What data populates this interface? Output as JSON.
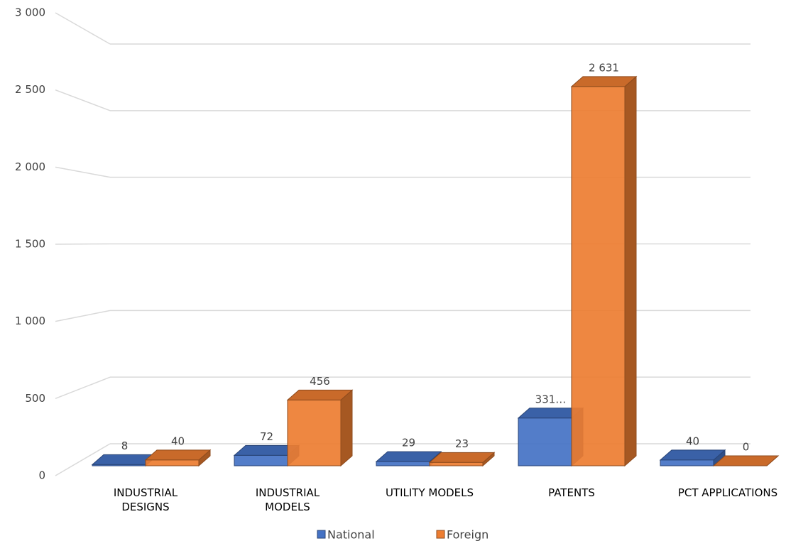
{
  "chart_data": {
    "type": "bar3d",
    "categories": [
      "INDUSTRIAL DESIGNS",
      "INDUSTRIAL MODELS",
      "UTILITY MODELS",
      "PATENTS",
      "PCT APPLICATIONS"
    ],
    "series": [
      {
        "name": "National",
        "color": "#4472c4",
        "values": [
          8,
          72,
          29,
          331,
          40
        ],
        "value_labels": [
          "8",
          "72",
          "29",
          "331…",
          "40"
        ]
      },
      {
        "name": "Foreign",
        "color": "#ed7d31",
        "values": [
          40,
          456,
          23,
          2631,
          0
        ],
        "value_labels": [
          "40",
          "456",
          "23",
          "2 631",
          "0"
        ]
      }
    ],
    "ylim": [
      0,
      3000
    ],
    "yticks": [
      0,
      500,
      {
        "value": 1000,
        "label": "1 000"
      },
      {
        "value": 1500,
        "label": "1 500"
      },
      {
        "value": 2000,
        "label": "2 000"
      },
      {
        "value": 2500,
        "label": "2 500"
      },
      {
        "value": 3000,
        "label": "3 000"
      }
    ],
    "grid": true
  }
}
